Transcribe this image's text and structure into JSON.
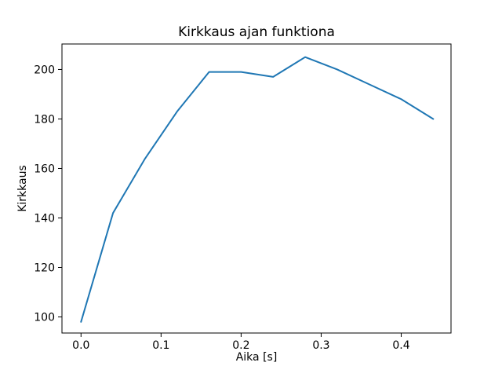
{
  "chart_data": {
    "type": "line",
    "title": "Kirkkaus ajan funktiona",
    "xlabel": "Aika [s]",
    "ylabel": "Kirkkaus",
    "x": [
      0.0,
      0.04,
      0.08,
      0.12,
      0.16,
      0.2,
      0.24,
      0.28,
      0.32,
      0.36,
      0.4,
      0.44
    ],
    "values": [
      98,
      142,
      164,
      183,
      199,
      199,
      197,
      205,
      200,
      194,
      188,
      180
    ],
    "x_tick_labels": [
      "0.0",
      "0.1",
      "0.2",
      "0.3",
      "0.4"
    ],
    "x_tick_values": [
      0.0,
      0.1,
      0.2,
      0.3,
      0.4
    ],
    "y_tick_labels": [
      "100",
      "120",
      "140",
      "160",
      "180",
      "200"
    ],
    "y_tick_values": [
      100,
      120,
      140,
      160,
      180,
      200
    ],
    "xlim": [
      -0.0238,
      0.4622
    ],
    "ylim": [
      93.5,
      210.3
    ],
    "line_color": "#1f77b4",
    "axis_color": "#000000",
    "grid": false,
    "legend": "none"
  }
}
